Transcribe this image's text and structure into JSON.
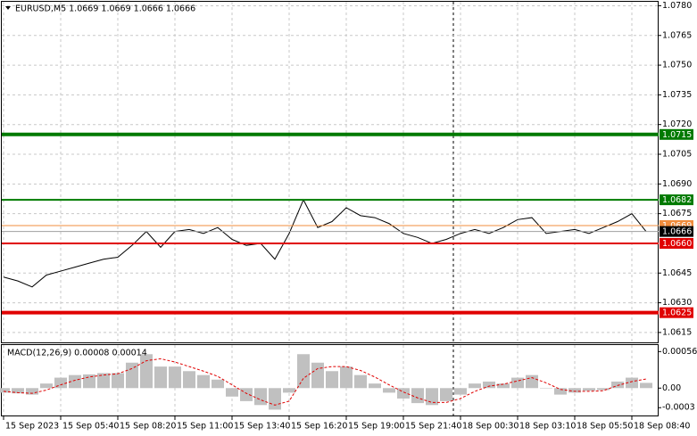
{
  "chart_data": [
    {
      "type": "line",
      "title": "EURUSD,M5  1.0669 1.0669 1.0666 1.0666",
      "categories": [
        "15 Sep 2023",
        null,
        null,
        null,
        "15 Sep 05:40",
        null,
        null,
        null,
        "15 Sep 08:20",
        null,
        null,
        null,
        "15 Sep 11:00",
        null,
        null,
        null,
        "15 Sep 13:40",
        null,
        null,
        null,
        "15 Sep 16:20",
        null,
        null,
        null,
        "15 Sep 19:00",
        null,
        null,
        null,
        "15 Sep 21:40",
        null,
        null,
        null,
        "18 Sep 00:30",
        null,
        null,
        null,
        "18 Sep 03:10",
        null,
        null,
        null,
        "18 Sep 05:50",
        null,
        null,
        null,
        "18 Sep 08:40",
        null
      ],
      "series": [
        {
          "name": "EURUSD",
          "color": "#000000",
          "values": [
            1.0643,
            1.0641,
            1.0638,
            1.0644,
            1.0646,
            1.0648,
            1.065,
            1.0652,
            1.0653,
            1.0659,
            1.0666,
            1.0658,
            1.0666,
            1.0667,
            1.0665,
            1.0668,
            1.0662,
            1.0659,
            1.066,
            1.0652,
            1.0665,
            1.0682,
            1.0668,
            1.0671,
            1.0678,
            1.0674,
            1.0673,
            1.067,
            1.0665,
            1.0663,
            1.066,
            1.0662,
            1.0665,
            1.0667,
            1.0665,
            1.0668,
            1.0672,
            1.0673,
            1.0665,
            1.0666,
            1.0667,
            1.0665,
            1.0668,
            1.0671,
            1.0675,
            1.0666
          ]
        }
      ],
      "ylim": [
        1.061,
        1.0782
      ],
      "yticks": [
        {
          "value": 1.078,
          "label": "1.0780"
        },
        1.0765,
        {
          "value": 1.075,
          "label": "1.0750"
        },
        1.0735,
        {
          "value": 1.072,
          "label": "1.0720"
        },
        1.0705,
        {
          "value": 1.069,
          "label": "1.0690"
        },
        1.0675,
        1.0645,
        {
          "value": 1.063,
          "label": "1.0630"
        },
        1.0615
      ],
      "grid": true,
      "levels": [
        {
          "value": 1.0715,
          "label": "1.0715",
          "color": "#007a00",
          "style": "thick"
        },
        {
          "value": 1.0682,
          "label": "1.0682",
          "color": "#007a00",
          "style": "thin"
        },
        {
          "value": 1.066,
          "label": "1.0660",
          "color": "#e00000",
          "style": "thin"
        },
        {
          "value": 1.0625,
          "label": "1.0625",
          "color": "#e00000",
          "style": "thick"
        }
      ],
      "ask": 1.0669,
      "ask_color": "#f08c3c",
      "bid": 1.0666,
      "bid_color": "#000000"
    },
    {
      "type": "macd",
      "title": "MACD(12,26,9) 0.00008 0.00014",
      "series": [
        {
          "name": "MACD",
          "color": "#c0c0c0",
          "values": [
            -7e-05,
            -8e-05,
            -0.0001,
            7e-05,
            0.00016,
            0.0002,
            0.00021,
            0.00023,
            0.00023,
            0.00039,
            0.00052,
            0.00033,
            0.00033,
            0.00026,
            0.0002,
            0.00013,
            -0.00013,
            -0.0002,
            -0.00026,
            -0.00033,
            -7e-05,
            0.00052,
            0.00039,
            0.00026,
            0.00033,
            0.0002,
            7e-05,
            -7e-05,
            -0.00016,
            -0.00023,
            -0.00026,
            -0.0002,
            -0.0001,
            7e-05,
            0.0001,
            7e-05,
            0.00016,
            0.0002,
            0,
            -0.0001,
            -7e-05,
            -4e-05,
            -3e-05,
            0.0001,
            0.00016,
            8e-05
          ]
        },
        {
          "name": "Signal",
          "color": "#e00000",
          "values": [
            -5e-05,
            -7e-05,
            -8e-05,
            -3e-05,
            5e-05,
            0.00012,
            0.00017,
            0.0002,
            0.00022,
            0.0003,
            0.00042,
            0.00045,
            0.0004,
            0.00033,
            0.00026,
            0.00018,
            5e-05,
            -8e-05,
            -0.00018,
            -0.00026,
            -0.0002,
            0.00015,
            0.0003,
            0.00033,
            0.00033,
            0.00027,
            0.00017,
            5e-05,
            -6e-05,
            -0.00015,
            -0.00022,
            -0.00022,
            -0.00016,
            -5e-05,
            3e-05,
            6e-05,
            0.00011,
            0.00016,
            8e-05,
            -2e-05,
            -5e-05,
            -5e-05,
            -4e-05,
            4e-05,
            0.0001,
            0.00014
          ]
        }
      ],
      "ylim": [
        -0.00042,
        0.00066
      ],
      "yticks": [
        0.00056,
        {
          "value": 0,
          "label": "0.00"
        },
        -0.0003
      ]
    }
  ]
}
